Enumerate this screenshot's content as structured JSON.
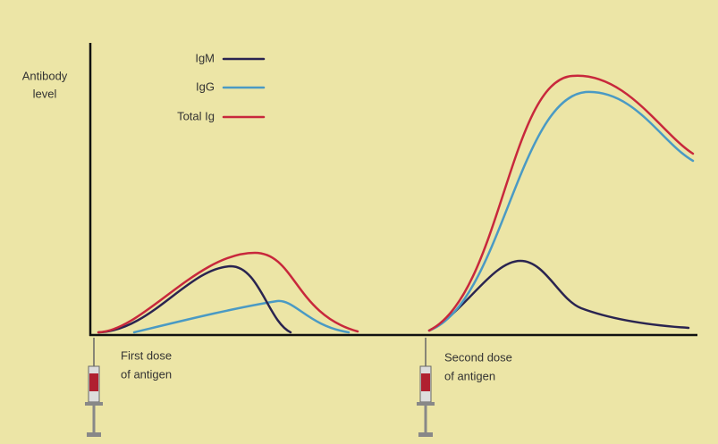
{
  "axis_label": {
    "lines": [
      "Antibody",
      "level"
    ]
  },
  "legend": [
    {
      "name": "IgM",
      "color": "#2a2450"
    },
    {
      "name": "IgG",
      "color": "#4a9ac4"
    },
    {
      "name": "Total Ig",
      "color": "#c8283c"
    }
  ],
  "annotations": [
    {
      "lines": [
        "First dose",
        "of antigen"
      ]
    },
    {
      "lines": [
        "Second dose",
        "of antigen"
      ]
    }
  ]
}
